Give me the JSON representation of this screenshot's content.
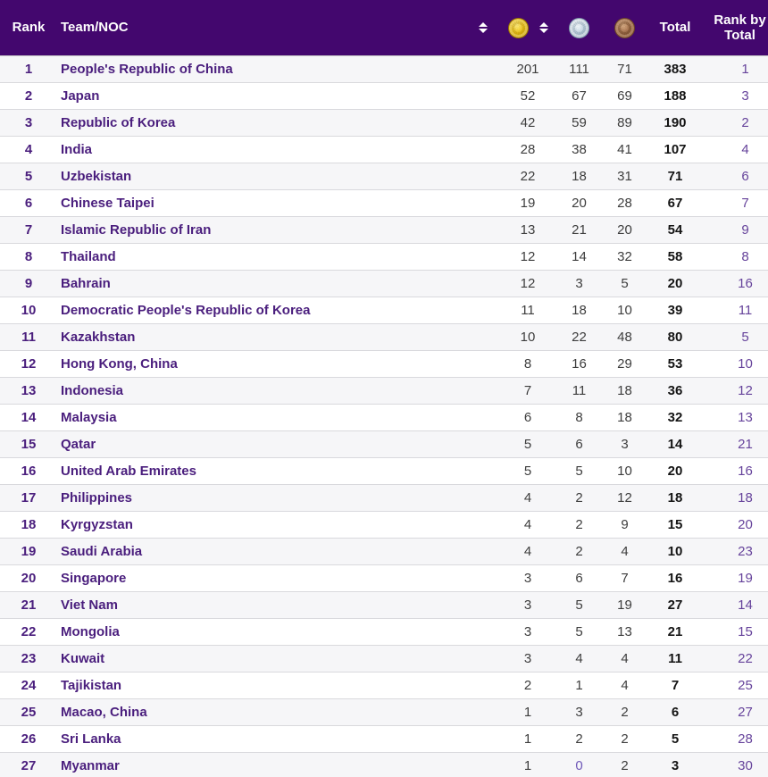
{
  "app": {
    "description": "Asian Games medal standings table",
    "colors": {
      "header_background": "#43076e",
      "header_text": "#ffffff",
      "team_text": "#4a1e7d",
      "count_text": "#3d3d3d",
      "total_text": "#141414",
      "rank_by_total_text": "#66439b",
      "zero_value_text": "#6f58b8",
      "row_stripe": "#f6f6f8",
      "row_border": "#d9d9dd",
      "medal_gold": "#f0c81a",
      "medal_silver": "#ccdde8",
      "medal_bronze": "#a97450"
    }
  },
  "header": {
    "rank_label": "Rank",
    "team_label": "Team/NOC",
    "total_label": "Total",
    "rank_by_total_label": "Rank by Total",
    "icons": {
      "team_sort": "sort-arrows-icon",
      "gold_column": "gold-medal-icon",
      "gold_sort": "sort-arrows-icon",
      "silver_column": "silver-medal-icon",
      "bronze_column": "bronze-medal-icon"
    }
  },
  "table": {
    "rows": [
      {
        "rank": "1",
        "team": "People's Republic of China",
        "gold": "201",
        "silver": "111",
        "bronze": "71",
        "total": "383",
        "rank_by_total": "1"
      },
      {
        "rank": "2",
        "team": "Japan",
        "gold": "52",
        "silver": "67",
        "bronze": "69",
        "total": "188",
        "rank_by_total": "3"
      },
      {
        "rank": "3",
        "team": "Republic of Korea",
        "gold": "42",
        "silver": "59",
        "bronze": "89",
        "total": "190",
        "rank_by_total": "2"
      },
      {
        "rank": "4",
        "team": "India",
        "gold": "28",
        "silver": "38",
        "bronze": "41",
        "total": "107",
        "rank_by_total": "4"
      },
      {
        "rank": "5",
        "team": "Uzbekistan",
        "gold": "22",
        "silver": "18",
        "bronze": "31",
        "total": "71",
        "rank_by_total": "6"
      },
      {
        "rank": "6",
        "team": "Chinese Taipei",
        "gold": "19",
        "silver": "20",
        "bronze": "28",
        "total": "67",
        "rank_by_total": "7"
      },
      {
        "rank": "7",
        "team": "Islamic Republic of Iran",
        "gold": "13",
        "silver": "21",
        "bronze": "20",
        "total": "54",
        "rank_by_total": "9"
      },
      {
        "rank": "8",
        "team": "Thailand",
        "gold": "12",
        "silver": "14",
        "bronze": "32",
        "total": "58",
        "rank_by_total": "8"
      },
      {
        "rank": "9",
        "team": "Bahrain",
        "gold": "12",
        "silver": "3",
        "bronze": "5",
        "total": "20",
        "rank_by_total": "16"
      },
      {
        "rank": "10",
        "team": "Democratic People's Republic of Korea",
        "gold": "11",
        "silver": "18",
        "bronze": "10",
        "total": "39",
        "rank_by_total": "11"
      },
      {
        "rank": "11",
        "team": "Kazakhstan",
        "gold": "10",
        "silver": "22",
        "bronze": "48",
        "total": "80",
        "rank_by_total": "5"
      },
      {
        "rank": "12",
        "team": "Hong Kong, China",
        "gold": "8",
        "silver": "16",
        "bronze": "29",
        "total": "53",
        "rank_by_total": "10"
      },
      {
        "rank": "13",
        "team": "Indonesia",
        "gold": "7",
        "silver": "11",
        "bronze": "18",
        "total": "36",
        "rank_by_total": "12"
      },
      {
        "rank": "14",
        "team": "Malaysia",
        "gold": "6",
        "silver": "8",
        "bronze": "18",
        "total": "32",
        "rank_by_total": "13"
      },
      {
        "rank": "15",
        "team": "Qatar",
        "gold": "5",
        "silver": "6",
        "bronze": "3",
        "total": "14",
        "rank_by_total": "21"
      },
      {
        "rank": "16",
        "team": "United Arab Emirates",
        "gold": "5",
        "silver": "5",
        "bronze": "10",
        "total": "20",
        "rank_by_total": "16"
      },
      {
        "rank": "17",
        "team": "Philippines",
        "gold": "4",
        "silver": "2",
        "bronze": "12",
        "total": "18",
        "rank_by_total": "18"
      },
      {
        "rank": "18",
        "team": "Kyrgyzstan",
        "gold": "4",
        "silver": "2",
        "bronze": "9",
        "total": "15",
        "rank_by_total": "20"
      },
      {
        "rank": "19",
        "team": "Saudi Arabia",
        "gold": "4",
        "silver": "2",
        "bronze": "4",
        "total": "10",
        "rank_by_total": "23"
      },
      {
        "rank": "20",
        "team": "Singapore",
        "gold": "3",
        "silver": "6",
        "bronze": "7",
        "total": "16",
        "rank_by_total": "19"
      },
      {
        "rank": "21",
        "team": "Viet Nam",
        "gold": "3",
        "silver": "5",
        "bronze": "19",
        "total": "27",
        "rank_by_total": "14"
      },
      {
        "rank": "22",
        "team": "Mongolia",
        "gold": "3",
        "silver": "5",
        "bronze": "13",
        "total": "21",
        "rank_by_total": "15"
      },
      {
        "rank": "23",
        "team": "Kuwait",
        "gold": "3",
        "silver": "4",
        "bronze": "4",
        "total": "11",
        "rank_by_total": "22"
      },
      {
        "rank": "24",
        "team": "Tajikistan",
        "gold": "2",
        "silver": "1",
        "bronze": "4",
        "total": "7",
        "rank_by_total": "25"
      },
      {
        "rank": "25",
        "team": "Macao, China",
        "gold": "1",
        "silver": "3",
        "bronze": "2",
        "total": "6",
        "rank_by_total": "27"
      },
      {
        "rank": "26",
        "team": "Sri Lanka",
        "gold": "1",
        "silver": "2",
        "bronze": "2",
        "total": "5",
        "rank_by_total": "28"
      },
      {
        "rank": "27",
        "team": "Myanmar",
        "gold": "1",
        "silver": "0",
        "bronze": "2",
        "total": "3",
        "rank_by_total": "30"
      }
    ]
  }
}
